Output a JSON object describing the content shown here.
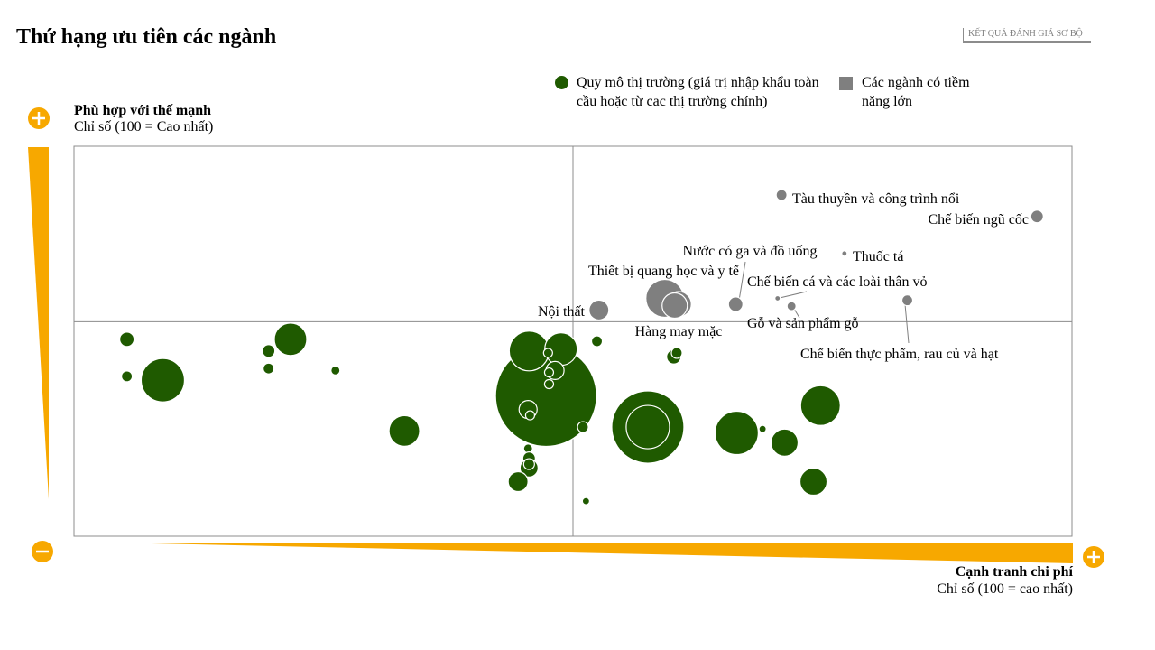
{
  "page": {
    "title": "Thứ hạng ưu tiên các ngành",
    "tag": "KẾT QUẢ ĐÁNH GIÁ SƠ BỘ"
  },
  "legend": {
    "market_size": "Quy mô thị trường (giá trị nhập khẩu toàn cầu hoặc từ cac thị trường chính)",
    "high_potential": "Các ngành có tiềm năng lớn"
  },
  "colors": {
    "bubble": "#1f5a00",
    "highlight": "#7f7f7f",
    "accent": "#f7a800",
    "grid": "#8c8c8c"
  },
  "icons": {
    "y_plus": "plus-circle-icon",
    "y_minus": "minus-circle-icon",
    "x_plus": "plus-circle-icon"
  },
  "chart_data": {
    "type": "scatter",
    "title": "Thứ hạng ưu tiên các ngành",
    "ylabel": "Phù hợp với thế mạnh",
    "ylabel_sub": "Chỉ số (100 = Cao nhất)",
    "xlabel": "Cạnh tranh chi phí",
    "xlabel_sub": "Chỉ số (100 = cao nhất)",
    "xlim": [
      0,
      100
    ],
    "ylim": [
      0,
      100
    ],
    "quadrant_lines": {
      "x": 50,
      "y": 55
    },
    "highlighted": [
      {
        "name": "Tàu thuyền và công trình nổi",
        "x": 70.9,
        "y": 87.5,
        "size": 6
      },
      {
        "name": "Chế biến ngũ cốc",
        "x": 96.5,
        "y": 82,
        "size": 7
      },
      {
        "name": "Thuốc tá",
        "x": 77.2,
        "y": 72.5,
        "size": 3
      },
      {
        "name": "Nước có ga và đồ uống",
        "x": 66.3,
        "y": 59.5,
        "size": 8
      },
      {
        "name": "Thiết bị quang học và y tế",
        "x": 59.2,
        "y": 61,
        "size": 21
      },
      {
        "name": "Nội thất",
        "x": 52.6,
        "y": 58,
        "size": 11
      },
      {
        "name": "Hàng may mặc",
        "x": 60.6,
        "y": 59.5,
        "size": 14
      },
      {
        "name": "Chế biến cá và các loài thân vỏ",
        "x": 70.5,
        "y": 61,
        "size": 3
      },
      {
        "name": "Gỗ và sản phẩm gỗ",
        "x": 71.9,
        "y": 59,
        "size": 5
      },
      {
        "name": "Chế biến thực phẩm, rau củ và hạt",
        "x": 83.5,
        "y": 60.5,
        "size": 6
      }
    ],
    "market_bubbles": [
      {
        "x": 5.3,
        "y": 50.5,
        "size": 8
      },
      {
        "x": 5.3,
        "y": 41,
        "size": 6
      },
      {
        "x": 8.9,
        "y": 40,
        "size": 24
      },
      {
        "x": 19.5,
        "y": 47.5,
        "size": 7
      },
      {
        "x": 19.5,
        "y": 43,
        "size": 6
      },
      {
        "x": 21.7,
        "y": 50.5,
        "size": 18
      },
      {
        "x": 26.2,
        "y": 42.5,
        "size": 5
      },
      {
        "x": 33.1,
        "y": 27,
        "size": 17
      },
      {
        "x": 47.3,
        "y": 36,
        "size": 56
      },
      {
        "x": 45.6,
        "y": 47.5,
        "size": 22
      },
      {
        "x": 48.8,
        "y": 48,
        "size": 18
      },
      {
        "x": 47.5,
        "y": 47,
        "size": 5
      },
      {
        "x": 48.2,
        "y": 42.5,
        "size": 10
      },
      {
        "x": 47.6,
        "y": 42,
        "size": 5
      },
      {
        "x": 47.6,
        "y": 39,
        "size": 5
      },
      {
        "x": 45.5,
        "y": 32.5,
        "size": 10
      },
      {
        "x": 45.7,
        "y": 31,
        "size": 5
      },
      {
        "x": 45.5,
        "y": 22.5,
        "size": 5
      },
      {
        "x": 45.6,
        "y": 20,
        "size": 7
      },
      {
        "x": 45.6,
        "y": 17.5,
        "size": 10
      },
      {
        "x": 45.6,
        "y": 18.5,
        "size": 6
      },
      {
        "x": 44.5,
        "y": 14,
        "size": 11
      },
      {
        "x": 51.0,
        "y": 28,
        "size": 6
      },
      {
        "x": 52.4,
        "y": 50,
        "size": 6
      },
      {
        "x": 51.3,
        "y": 9,
        "size": 4
      },
      {
        "x": 57.5,
        "y": 28,
        "size": 40
      },
      {
        "x": 57.5,
        "y": 28,
        "size": 24
      },
      {
        "x": 60.1,
        "y": 46,
        "size": 8
      },
      {
        "x": 60.4,
        "y": 47,
        "size": 6
      },
      {
        "x": 66.4,
        "y": 26.5,
        "size": 24
      },
      {
        "x": 69.0,
        "y": 27.5,
        "size": 4
      },
      {
        "x": 71.2,
        "y": 24,
        "size": 15
      },
      {
        "x": 74.8,
        "y": 33.5,
        "size": 22
      },
      {
        "x": 74.1,
        "y": 14,
        "size": 15
      }
    ]
  }
}
